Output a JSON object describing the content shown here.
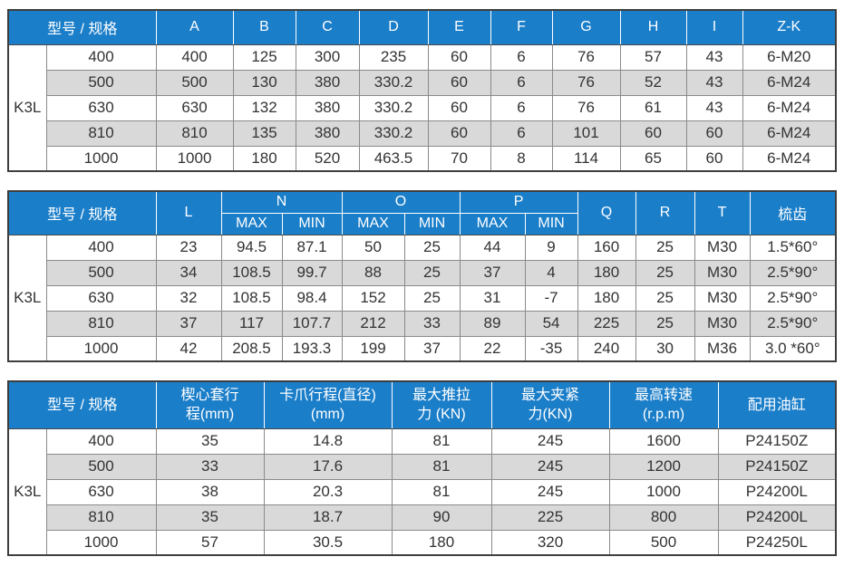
{
  "model_label": "K3L",
  "colors": {
    "header_bg": "#1b7ec9",
    "stripe_bg": "#d9d9d9",
    "border_outer": "#3e3e3e",
    "border_inner": "#8a8a8a",
    "header_text": "#ffffff",
    "body_text": "#333333"
  },
  "t1": {
    "title": "型号 / 规格",
    "cols": [
      "A",
      "B",
      "C",
      "D",
      "E",
      "F",
      "G",
      "H",
      "I",
      "Z-K"
    ],
    "rows": [
      [
        "400",
        "400",
        "125",
        "300",
        "235",
        "60",
        "6",
        "76",
        "57",
        "43",
        "6-M20"
      ],
      [
        "500",
        "500",
        "130",
        "380",
        "330.2",
        "60",
        "6",
        "76",
        "52",
        "43",
        "6-M24"
      ],
      [
        "630",
        "630",
        "132",
        "380",
        "330.2",
        "60",
        "6",
        "76",
        "61",
        "43",
        "6-M24"
      ],
      [
        "810",
        "810",
        "135",
        "380",
        "330.2",
        "60",
        "6",
        "101",
        "60",
        "60",
        "6-M24"
      ],
      [
        "1000",
        "1000",
        "180",
        "520",
        "463.5",
        "70",
        "8",
        "114",
        "65",
        "60",
        "6-M24"
      ]
    ]
  },
  "t2": {
    "title": "型号 / 规格",
    "col_l": "L",
    "group_n": "N",
    "group_o": "O",
    "group_p": "P",
    "max": "MAX",
    "min": "MIN",
    "col_q": "Q",
    "col_r": "R",
    "col_t": "T",
    "col_comb": "梳齿",
    "rows": [
      [
        "400",
        "23",
        "94.5",
        "87.1",
        "50",
        "25",
        "44",
        "9",
        "160",
        "25",
        "M30",
        "1.5*60°"
      ],
      [
        "500",
        "34",
        "108.5",
        "99.7",
        "88",
        "25",
        "37",
        "4",
        "180",
        "25",
        "M30",
        "2.5*90°"
      ],
      [
        "630",
        "32",
        "108.5",
        "98.4",
        "152",
        "25",
        "31",
        "-7",
        "180",
        "25",
        "M30",
        "2.5*90°"
      ],
      [
        "810",
        "37",
        "117",
        "107.7",
        "212",
        "33",
        "89",
        "54",
        "225",
        "25",
        "M30",
        "2.5*90°"
      ],
      [
        "1000",
        "42",
        "208.5",
        "193.3",
        "199",
        "37",
        "22",
        "-35",
        "240",
        "30",
        "M36",
        "3.0 *60°"
      ]
    ]
  },
  "t3": {
    "title": "型号 / 规格",
    "cols": [
      "楔心套行\n程(mm)",
      "卡爪行程(直径)\n(mm)",
      "最大推拉\n力 (KN)",
      "最大夹紧\n力(KN)",
      "最高转速\n(r.p.m)",
      "配用油缸"
    ],
    "rows": [
      [
        "400",
        "35",
        "14.8",
        "81",
        "245",
        "1600",
        "P24150Z"
      ],
      [
        "500",
        "33",
        "17.6",
        "81",
        "245",
        "1200",
        "P24150Z"
      ],
      [
        "630",
        "38",
        "20.3",
        "81",
        "245",
        "1000",
        "P24200L"
      ],
      [
        "810",
        "35",
        "18.7",
        "90",
        "225",
        "800",
        "P24200L"
      ],
      [
        "1000",
        "57",
        "30.5",
        "180",
        "320",
        "500",
        "P24250L"
      ]
    ]
  }
}
